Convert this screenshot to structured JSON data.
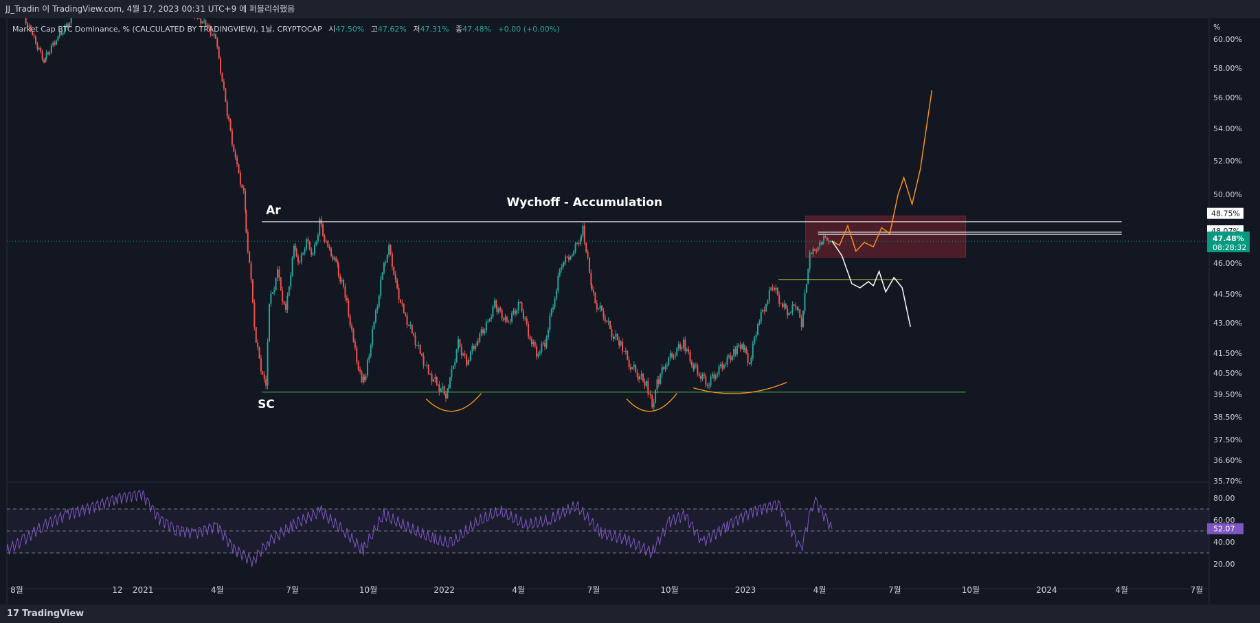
{
  "header": {
    "title": "JJ_Tradin 이 TradingView.com, 4월 17, 2023 00:31 UTC+9 에 퍼블리쉬했음"
  },
  "legend": {
    "symbol": "Market Cap BTC Dominance, % (CALCULATED BY TRADINGVIEW), 1날, CRYPTOCAP",
    "open_label": "시",
    "open": "47.50%",
    "high_label": "고",
    "high": "47.62%",
    "low_label": "저",
    "low": "47.31%",
    "close_label": "종",
    "close": "47.48%",
    "change": "+0.00 (+0.00%)"
  },
  "footer": {
    "brand": "TradingView"
  },
  "colors": {
    "background": "#131722",
    "up": "#26a69a",
    "down": "#ef5350",
    "orange": "#f7931a",
    "rsi": "#7e57c2",
    "price_badge": "#089981"
  },
  "chart_data": [
    {
      "type": "line",
      "title": "Wychoff - Accumulation",
      "ylabel": "%",
      "y_ticks": [
        "60.00%",
        "58.00%",
        "56.00%",
        "54.00%",
        "52.00%",
        "50.00%",
        "48.00%",
        "46.00%",
        "44.50%",
        "43.00%",
        "41.50%",
        "40.50%",
        "39.50%",
        "38.50%",
        "37.50%",
        "36.60%",
        "35.70%"
      ],
      "y_tick_values": [
        60.0,
        58.0,
        56.0,
        54.0,
        52.0,
        50.0,
        48.0,
        46.0,
        44.5,
        43.0,
        41.5,
        40.5,
        39.5,
        38.5,
        37.5,
        36.6,
        35.7
      ],
      "x_ticks": [
        "8월",
        "12",
        "2021",
        "4월",
        "7월",
        "10월",
        "2022",
        "4월",
        "7월",
        "10월",
        "2023",
        "4월",
        "7월",
        "10월",
        "2024",
        "4월",
        "7월"
      ],
      "x_tick_dates": [
        "2020-08-01",
        "2020-12-01",
        "2021-01-01",
        "2021-04-01",
        "2021-07-01",
        "2021-10-01",
        "2022-01-01",
        "2022-04-01",
        "2022-07-01",
        "2022-10-01",
        "2023-01-01",
        "2023-04-01",
        "2023-07-01",
        "2023-10-01",
        "2024-01-01",
        "2024-04-01",
        "2024-07-01"
      ],
      "price_series": [
        [
          "2020-07-20",
          62.0
        ],
        [
          "2020-08-01",
          63.0
        ],
        [
          "2020-08-20",
          60.5
        ],
        [
          "2020-09-05",
          58.5
        ],
        [
          "2020-09-20",
          60.0
        ],
        [
          "2020-10-10",
          61.5
        ],
        [
          "2020-11-05",
          62.5
        ],
        [
          "2020-12-01",
          63.0
        ],
        [
          "2020-12-20",
          67.0
        ],
        [
          "2021-01-01",
          70.0
        ],
        [
          "2021-01-20",
          66.0
        ],
        [
          "2021-02-10",
          63.0
        ],
        [
          "2021-03-01",
          62.0
        ],
        [
          "2021-03-20",
          61.0
        ],
        [
          "2021-04-01",
          60.0
        ],
        [
          "2021-04-15",
          55.0
        ],
        [
          "2021-04-25",
          52.0
        ],
        [
          "2021-05-05",
          50.0
        ],
        [
          "2021-05-12",
          46.0
        ],
        [
          "2021-05-20",
          42.0
        ],
        [
          "2021-05-30",
          40.0
        ],
        [
          "2021-06-01",
          39.7
        ],
        [
          "2021-06-05",
          44.0
        ],
        [
          "2021-06-15",
          45.5
        ],
        [
          "2021-06-25",
          43.5
        ],
        [
          "2021-07-05",
          47.0
        ],
        [
          "2021-07-12",
          46.0
        ],
        [
          "2021-07-20",
          47.5
        ],
        [
          "2021-07-28",
          46.5
        ],
        [
          "2021-08-05",
          48.6
        ],
        [
          "2021-08-15",
          47.0
        ],
        [
          "2021-08-25",
          46.0
        ],
        [
          "2021-09-05",
          44.5
        ],
        [
          "2021-09-15",
          42.0
        ],
        [
          "2021-09-25",
          40.0
        ],
        [
          "2021-09-30",
          40.5
        ],
        [
          "2021-10-10",
          43.0
        ],
        [
          "2021-10-20",
          45.5
        ],
        [
          "2021-10-28",
          47.0
        ],
        [
          "2021-11-05",
          45.0
        ],
        [
          "2021-11-15",
          43.5
        ],
        [
          "2021-11-25",
          42.5
        ],
        [
          "2021-12-05",
          41.5
        ],
        [
          "2021-12-15",
          40.5
        ],
        [
          "2021-12-25",
          40.0
        ],
        [
          "2022-01-05",
          39.5
        ],
        [
          "2022-01-12",
          40.5
        ],
        [
          "2022-01-20",
          42.0
        ],
        [
          "2022-01-30",
          41.0
        ],
        [
          "2022-02-10",
          42.0
        ],
        [
          "2022-02-25",
          43.0
        ],
        [
          "2022-03-05",
          44.0
        ],
        [
          "2022-03-20",
          43.0
        ],
        [
          "2022-04-05",
          44.0
        ],
        [
          "2022-04-15",
          42.5
        ],
        [
          "2022-04-25",
          41.5
        ],
        [
          "2022-05-05",
          42.0
        ],
        [
          "2022-05-15",
          44.0
        ],
        [
          "2022-05-25",
          46.0
        ],
        [
          "2022-06-05",
          46.5
        ],
        [
          "2022-06-15",
          47.5
        ],
        [
          "2022-06-20",
          48.2
        ],
        [
          "2022-06-28",
          45.5
        ],
        [
          "2022-07-05",
          44.0
        ],
        [
          "2022-07-15",
          43.5
        ],
        [
          "2022-07-25",
          42.5
        ],
        [
          "2022-08-05",
          42.0
        ],
        [
          "2022-08-15",
          41.0
        ],
        [
          "2022-08-25",
          40.5
        ],
        [
          "2022-09-05",
          40.0
        ],
        [
          "2022-09-12",
          39.0
        ],
        [
          "2022-09-18",
          40.0
        ],
        [
          "2022-09-28",
          41.0
        ],
        [
          "2022-10-08",
          41.5
        ],
        [
          "2022-10-20",
          42.0
        ],
        [
          "2022-10-30",
          41.0
        ],
        [
          "2022-11-08",
          40.5
        ],
        [
          "2022-11-18",
          40.0
        ],
        [
          "2022-11-28",
          40.5
        ],
        [
          "2022-12-08",
          41.0
        ],
        [
          "2022-12-20",
          41.5
        ],
        [
          "2022-12-30",
          42.0
        ],
        [
          "2023-01-08",
          41.0
        ],
        [
          "2023-01-18",
          43.0
        ],
        [
          "2023-01-28",
          44.0
        ],
        [
          "2023-02-05",
          45.0
        ],
        [
          "2023-02-15",
          44.0
        ],
        [
          "2023-02-25",
          43.5
        ],
        [
          "2023-03-05",
          44.0
        ],
        [
          "2023-03-12",
          43.0
        ],
        [
          "2023-03-18",
          45.0
        ],
        [
          "2023-03-22",
          46.5
        ],
        [
          "2023-03-30",
          47.0
        ],
        [
          "2023-04-05",
          47.3
        ],
        [
          "2023-04-10",
          47.8
        ],
        [
          "2023-04-14",
          47.2
        ],
        [
          "2023-04-16",
          47.48
        ]
      ],
      "horizontal_levels": [
        {
          "y": 48.6,
          "from": "2021-05-25",
          "to": "2024-04-01",
          "color": "#ffffff"
        },
        {
          "y": 39.6,
          "from": "2021-05-25",
          "to": "2023-09-25",
          "color": "#4caf50"
        },
        {
          "y": 45.2,
          "from": "2023-02-10",
          "to": "2023-07-10",
          "color": "#cddc39"
        },
        {
          "y": 47.95,
          "from": "2023-03-30",
          "to": "2024-04-01",
          "color": "#ffffff"
        },
        {
          "y": 48.07,
          "from": "2023-03-30",
          "to": "2024-04-01",
          "color": "#ffffff"
        }
      ],
      "zone": {
        "from": "2023-03-15",
        "to": "2023-09-25",
        "y_top": 48.9,
        "y_bottom": 46.4
      },
      "projection_bull": [
        [
          "2023-04-16",
          47.5
        ],
        [
          "2023-04-25",
          47.2
        ],
        [
          "2023-05-05",
          48.4
        ],
        [
          "2023-05-15",
          46.8
        ],
        [
          "2023-05-25",
          47.4
        ],
        [
          "2023-06-05",
          47.1
        ],
        [
          "2023-06-15",
          48.3
        ],
        [
          "2023-06-25",
          48.0
        ],
        [
          "2023-07-05",
          50.0
        ],
        [
          "2023-07-12",
          51.0
        ],
        [
          "2023-07-22",
          49.5
        ],
        [
          "2023-08-01",
          51.5
        ],
        [
          "2023-08-15",
          56.5
        ]
      ],
      "projection_bear": [
        [
          "2023-04-16",
          47.5
        ],
        [
          "2023-04-28",
          46.5
        ],
        [
          "2023-05-10",
          45.0
        ],
        [
          "2023-05-20",
          44.8
        ],
        [
          "2023-05-30",
          45.1
        ],
        [
          "2023-06-05",
          44.9
        ],
        [
          "2023-06-12",
          45.6
        ],
        [
          "2023-06-20",
          44.6
        ],
        [
          "2023-06-30",
          45.3
        ],
        [
          "2023-07-10",
          44.8
        ],
        [
          "2023-07-20",
          42.8
        ]
      ],
      "annotations": [
        {
          "text": "Wychoff - Accumulation",
          "date": "2022-06-20",
          "y": 49.4
        },
        {
          "text": "Ar",
          "date": "2021-05-30",
          "y": 49.0
        },
        {
          "text": "SC",
          "date": "2021-05-20",
          "y": 38.9
        }
      ],
      "price_labels": [
        "48.75%",
        "48.07%",
        "47.95%"
      ],
      "current_price": "47.48%",
      "countdown": "08:28:32"
    },
    {
      "type": "line",
      "title": "",
      "y_ticks": [
        "80.00",
        "60.00",
        "40.00",
        "20.00"
      ],
      "y_tick_values": [
        80,
        60,
        40,
        20
      ],
      "bands": [
        30,
        50,
        70
      ],
      "current_value": "52.07",
      "series": [
        [
          "2020-07-20",
          32
        ],
        [
          "2020-08-10",
          42
        ],
        [
          "2020-09-01",
          55
        ],
        [
          "2020-10-01",
          65
        ],
        [
          "2020-11-01",
          72
        ],
        [
          "2020-12-01",
          80
        ],
        [
          "2021-01-01",
          84
        ],
        [
          "2021-01-20",
          62
        ],
        [
          "2021-02-10",
          52
        ],
        [
          "2021-03-05",
          48
        ],
        [
          "2021-04-01",
          55
        ],
        [
          "2021-04-20",
          35
        ],
        [
          "2021-05-15",
          22
        ],
        [
          "2021-06-01",
          40
        ],
        [
          "2021-07-01",
          55
        ],
        [
          "2021-08-05",
          68
        ],
        [
          "2021-09-01",
          50
        ],
        [
          "2021-09-25",
          32
        ],
        [
          "2021-10-20",
          65
        ],
        [
          "2021-11-20",
          52
        ],
        [
          "2021-12-20",
          42
        ],
        [
          "2022-01-10",
          38
        ],
        [
          "2022-02-10",
          58
        ],
        [
          "2022-03-10",
          68
        ],
        [
          "2022-04-10",
          55
        ],
        [
          "2022-05-10",
          60
        ],
        [
          "2022-06-10",
          73
        ],
        [
          "2022-07-10",
          48
        ],
        [
          "2022-08-10",
          42
        ],
        [
          "2022-09-10",
          30
        ],
        [
          "2022-10-01",
          58
        ],
        [
          "2022-10-20",
          65
        ],
        [
          "2022-11-10",
          40
        ],
        [
          "2022-12-10",
          55
        ],
        [
          "2023-01-10",
          68
        ],
        [
          "2023-02-10",
          75
        ],
        [
          "2023-03-10",
          32
        ],
        [
          "2023-03-25",
          80
        ],
        [
          "2023-04-16",
          52.07
        ]
      ]
    }
  ]
}
